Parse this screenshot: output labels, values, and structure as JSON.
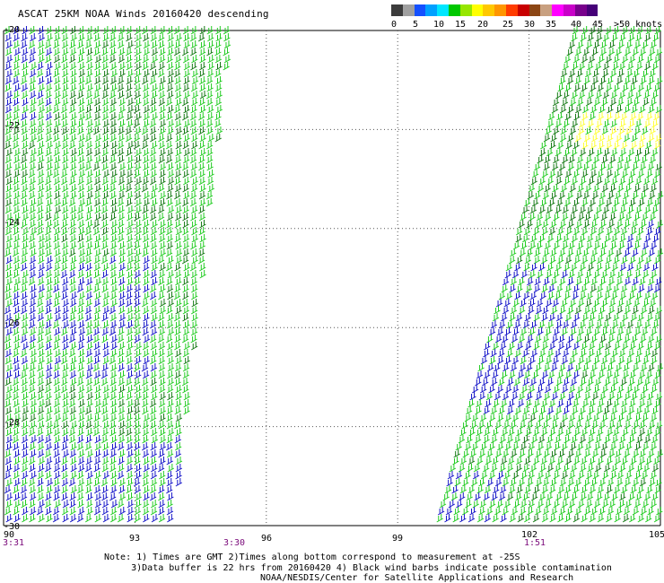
{
  "title": "ASCAT 25KM NOAA Winds 20160420 descending",
  "colorbar": {
    "colors": [
      "#3c3c3c",
      "#a0a0a0",
      "#1450ff",
      "#00a0ff",
      "#00e6ff",
      "#00c800",
      "#96e600",
      "#ffff00",
      "#ffc800",
      "#ff9600",
      "#ff3c00",
      "#c80000",
      "#8c4614",
      "#c8a080",
      "#ff00ff",
      "#c800c8",
      "#78008c",
      "#460078"
    ],
    "ticks": [
      "0",
      "5",
      "10",
      "15",
      "20",
      "25",
      "30",
      "35",
      "40",
      "45",
      ">50 knots"
    ]
  },
  "axes": {
    "lon_labels": [
      "90",
      "93",
      "96",
      "99",
      "102",
      "105"
    ],
    "lat_labels": [
      "-20",
      "-22",
      "-24",
      "-26",
      "-28",
      "-30"
    ]
  },
  "pass_times": [
    "3:31",
    "3:30",
    "1:51"
  ],
  "notes": {
    "line1": "Note: 1) Times are GMT 2)Times along bottom correspond to measurement at -25S",
    "line2": "3)Data buffer is 22 hrs from 20160420 4) Black wind barbs indicate possible contamination"
  },
  "credit": "NOAA/NESDIS/Center for Satellite Applications and Research",
  "map_data": {
    "lon_range": [
      90,
      105
    ],
    "lat_range": [
      -30,
      -20
    ],
    "swath_colors": {
      "green": "#22cc22",
      "dark_green": "#157a15",
      "blue": "#1414c8",
      "yellow": "#ffff33"
    }
  }
}
